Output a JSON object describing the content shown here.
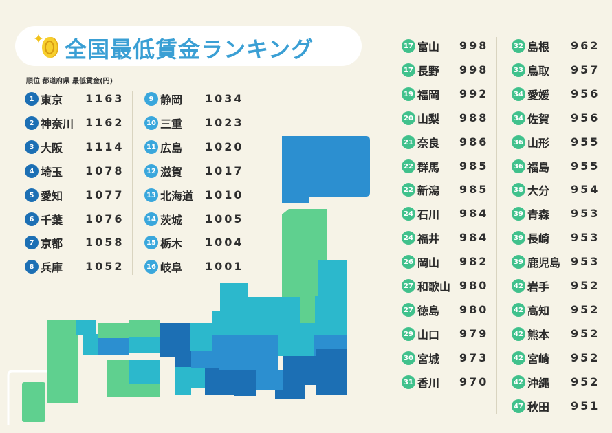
{
  "title": "全国最低賃金ランキング",
  "subheader": "順位  都道府県  最低賃金(円)",
  "colors": {
    "title": "#3a9fd4",
    "rank_top": "#1c6fb4",
    "rank_mid": "#3aa7dc",
    "rank_low": "#40c18c",
    "map_tiers": [
      "#1c6fb4",
      "#2c8fd0",
      "#2cb8cc",
      "#5fd08f"
    ]
  },
  "chart_data": {
    "type": "table",
    "columns": [
      "順位",
      "都道府県",
      "最低賃金(円)"
    ],
    "rows": [
      {
        "rank": "1",
        "pref": "東京",
        "wage": "1163"
      },
      {
        "rank": "2",
        "pref": "神奈川",
        "wage": "1162"
      },
      {
        "rank": "3",
        "pref": "大阪",
        "wage": "1114"
      },
      {
        "rank": "4",
        "pref": "埼玉",
        "wage": "1078"
      },
      {
        "rank": "5",
        "pref": "愛知",
        "wage": "1077"
      },
      {
        "rank": "6",
        "pref": "千葉",
        "wage": "1076"
      },
      {
        "rank": "7",
        "pref": "京都",
        "wage": "1058"
      },
      {
        "rank": "8",
        "pref": "兵庫",
        "wage": "1052"
      },
      {
        "rank": "9",
        "pref": "静岡",
        "wage": "1034"
      },
      {
        "rank": "10",
        "pref": "三重",
        "wage": "1023"
      },
      {
        "rank": "11",
        "pref": "広島",
        "wage": "1020"
      },
      {
        "rank": "12",
        "pref": "滋賀",
        "wage": "1017"
      },
      {
        "rank": "13",
        "pref": "北海道",
        "wage": "1010"
      },
      {
        "rank": "14",
        "pref": "茨城",
        "wage": "1005"
      },
      {
        "rank": "15",
        "pref": "栃木",
        "wage": "1004"
      },
      {
        "rank": "16",
        "pref": "岐阜",
        "wage": "1001"
      },
      {
        "rank": "17",
        "pref": "富山",
        "wage": "998"
      },
      {
        "rank": "17",
        "pref": "長野",
        "wage": "998"
      },
      {
        "rank": "19",
        "pref": "福岡",
        "wage": "992"
      },
      {
        "rank": "20",
        "pref": "山梨",
        "wage": "988"
      },
      {
        "rank": "21",
        "pref": "奈良",
        "wage": "986"
      },
      {
        "rank": "22",
        "pref": "群馬",
        "wage": "985"
      },
      {
        "rank": "22",
        "pref": "新潟",
        "wage": "985"
      },
      {
        "rank": "24",
        "pref": "石川",
        "wage": "984"
      },
      {
        "rank": "24",
        "pref": "福井",
        "wage": "984"
      },
      {
        "rank": "26",
        "pref": "岡山",
        "wage": "982"
      },
      {
        "rank": "27",
        "pref": "和歌山",
        "wage": "980"
      },
      {
        "rank": "27",
        "pref": "徳島",
        "wage": "980"
      },
      {
        "rank": "29",
        "pref": "山口",
        "wage": "979"
      },
      {
        "rank": "30",
        "pref": "宮城",
        "wage": "973"
      },
      {
        "rank": "31",
        "pref": "香川",
        "wage": "970"
      },
      {
        "rank": "32",
        "pref": "島根",
        "wage": "962"
      },
      {
        "rank": "33",
        "pref": "鳥取",
        "wage": "957"
      },
      {
        "rank": "34",
        "pref": "愛媛",
        "wage": "956"
      },
      {
        "rank": "34",
        "pref": "佐賀",
        "wage": "956"
      },
      {
        "rank": "36",
        "pref": "山形",
        "wage": "955"
      },
      {
        "rank": "36",
        "pref": "福島",
        "wage": "955"
      },
      {
        "rank": "38",
        "pref": "大分",
        "wage": "954"
      },
      {
        "rank": "39",
        "pref": "青森",
        "wage": "953"
      },
      {
        "rank": "39",
        "pref": "長崎",
        "wage": "953"
      },
      {
        "rank": "39",
        "pref": "鹿児島",
        "wage": "953"
      },
      {
        "rank": "42",
        "pref": "岩手",
        "wage": "952"
      },
      {
        "rank": "42",
        "pref": "高知",
        "wage": "952"
      },
      {
        "rank": "42",
        "pref": "熊本",
        "wage": "952"
      },
      {
        "rank": "42",
        "pref": "宮崎",
        "wage": "952"
      },
      {
        "rank": "42",
        "pref": "沖縄",
        "wage": "952"
      },
      {
        "rank": "47",
        "pref": "秋田",
        "wage": "951"
      }
    ]
  }
}
